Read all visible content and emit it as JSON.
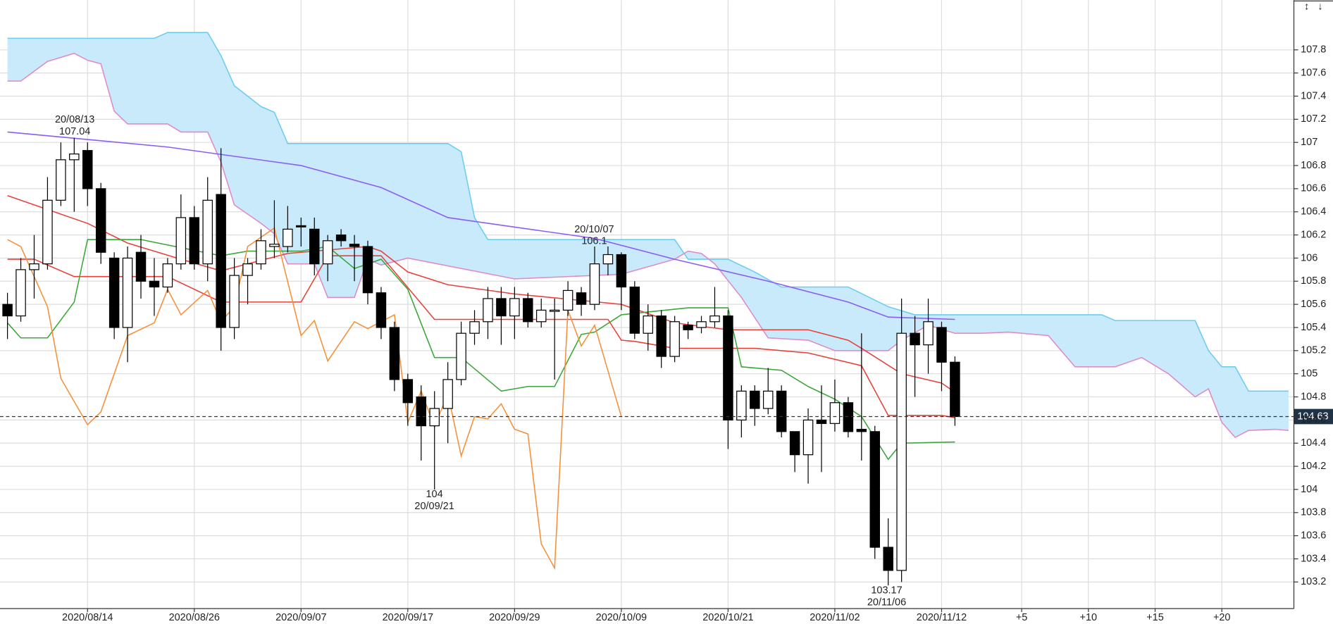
{
  "chart_data": {
    "type": "candlestick",
    "toolbar_icons": [
      "↕",
      "↓"
    ],
    "xlim": [
      -0.56,
      96.4
    ],
    "xticks": [
      {
        "value": 6,
        "label": "2020/08/14"
      },
      {
        "value": 14,
        "label": "2020/08/26"
      },
      {
        "value": 22,
        "label": "2020/09/07"
      },
      {
        "value": 30,
        "label": "2020/09/17"
      },
      {
        "value": 38,
        "label": "2020/09/29"
      },
      {
        "value": 46,
        "label": "2020/10/09"
      },
      {
        "value": 54,
        "label": "2020/10/21"
      },
      {
        "value": 62,
        "label": "2020/11/02"
      },
      {
        "value": 70,
        "label": "2020/11/12"
      },
      {
        "value": 76,
        "label": "+5"
      },
      {
        "value": 81,
        "label": "+10"
      },
      {
        "value": 86,
        "label": "+15"
      },
      {
        "value": 91,
        "label": "+20"
      }
    ],
    "ylim": [
      102.97,
      108.23
    ],
    "yticks": [
      103.2,
      103.4,
      103.6,
      103.8,
      104,
      104.2,
      104.4,
      104.6,
      104.8,
      105,
      105.2,
      105.4,
      105.6,
      105.8,
      106,
      106.2,
      106.4,
      106.6,
      106.8,
      107,
      107.2,
      107.4,
      107.6,
      107.8
    ],
    "grid": true,
    "last_price": 104.63,
    "candles": {
      "up_color": "#ffffff",
      "down_color": "#000000",
      "x": [
        0,
        1,
        2,
        3,
        4,
        5,
        6,
        7,
        8,
        9,
        10,
        11,
        12,
        13,
        14,
        15,
        16,
        17,
        18,
        19,
        20,
        21,
        22,
        23,
        24,
        25,
        26,
        27,
        28,
        29,
        30,
        31,
        32,
        33,
        34,
        35,
        36,
        37,
        38,
        39,
        40,
        41,
        42,
        43,
        44,
        45,
        46,
        47,
        48,
        49,
        50,
        51,
        52,
        53,
        54,
        55,
        56,
        57,
        58,
        59,
        60,
        61,
        62,
        63,
        64,
        65,
        66,
        67,
        68,
        69,
        70,
        71
      ],
      "open": [
        105.6,
        105.5,
        105.9,
        105.95,
        106.5,
        106.85,
        106.93,
        106.6,
        106.0,
        105.4,
        106.05,
        105.8,
        105.75,
        105.95,
        106.35,
        105.95,
        106.55,
        105.4,
        105.85,
        105.95,
        106.1,
        106.1,
        106.28,
        106.25,
        105.95,
        106.2,
        106.12,
        106.1,
        105.7,
        105.4,
        104.95,
        104.8,
        104.55,
        104.7,
        104.95,
        105.35,
        105.45,
        105.65,
        105.5,
        105.65,
        105.45,
        105.55,
        105.55,
        105.7,
        105.6,
        105.95,
        106.03,
        105.75,
        105.35,
        105.5,
        105.15,
        105.42,
        105.4,
        105.45,
        105.5,
        104.6,
        104.85,
        104.7,
        104.85,
        104.5,
        104.3,
        104.6,
        104.57,
        104.75,
        104.52,
        104.5,
        103.5,
        103.3,
        105.35,
        105.25,
        105.4,
        105.1
      ],
      "high": [
        105.7,
        106.0,
        106.2,
        106.7,
        107.0,
        107.04,
        107.0,
        106.65,
        106.05,
        106.1,
        106.2,
        106.0,
        106.0,
        106.55,
        106.45,
        106.7,
        106.95,
        106.0,
        106.0,
        106.25,
        106.5,
        106.45,
        106.35,
        106.35,
        106.2,
        106.25,
        106.2,
        106.15,
        105.75,
        105.45,
        105.0,
        104.9,
        104.85,
        105.1,
        105.45,
        105.55,
        105.75,
        105.75,
        105.75,
        105.7,
        105.65,
        105.65,
        105.8,
        105.75,
        106.1,
        106.1,
        106.05,
        105.8,
        105.6,
        105.55,
        105.5,
        105.45,
        105.5,
        105.75,
        105.55,
        104.9,
        104.9,
        105.05,
        104.9,
        104.5,
        104.7,
        104.9,
        104.95,
        104.8,
        105.35,
        104.55,
        103.75,
        105.65,
        105.5,
        105.65,
        105.45,
        105.15
      ],
      "low": [
        105.3,
        105.45,
        105.65,
        105.9,
        106.45,
        106.4,
        106.45,
        105.95,
        105.3,
        105.1,
        105.65,
        105.5,
        105.7,
        105.9,
        105.9,
        105.8,
        105.2,
        105.3,
        105.6,
        105.9,
        106.0,
        106.05,
        106.1,
        105.85,
        105.8,
        106.1,
        105.8,
        105.6,
        105.3,
        104.85,
        104.55,
        104.25,
        104.0,
        104.4,
        104.9,
        105.25,
        105.3,
        105.25,
        105.3,
        105.4,
        105.4,
        104.95,
        105.5,
        105.5,
        105.55,
        105.85,
        105.55,
        105.3,
        105.2,
        105.05,
        105.1,
        105.3,
        105.35,
        105.4,
        104.35,
        104.45,
        104.55,
        104.65,
        104.45,
        104.15,
        104.05,
        104.15,
        104.5,
        104.45,
        104.25,
        103.4,
        103.17,
        103.2,
        104.8,
        105.0,
        104.85,
        104.55
      ],
      "close": [
        105.5,
        105.9,
        105.95,
        106.5,
        106.85,
        106.9,
        106.6,
        106.05,
        105.4,
        106.0,
        105.8,
        105.75,
        105.95,
        106.35,
        105.95,
        106.5,
        105.4,
        105.85,
        105.95,
        106.15,
        106.12,
        106.25,
        106.27,
        105.95,
        106.15,
        106.15,
        106.1,
        105.7,
        105.4,
        104.95,
        104.75,
        104.55,
        104.7,
        104.95,
        105.35,
        105.45,
        105.65,
        105.5,
        105.65,
        105.45,
        105.55,
        105.55,
        105.72,
        105.6,
        105.95,
        106.03,
        105.75,
        105.35,
        105.5,
        105.15,
        105.45,
        105.38,
        105.45,
        105.5,
        104.6,
        104.85,
        104.7,
        104.85,
        104.5,
        104.3,
        104.6,
        104.57,
        104.75,
        104.5,
        104.5,
        103.5,
        103.3,
        105.35,
        105.25,
        105.45,
        105.1,
        104.63
      ]
    },
    "series": [
      {
        "color": "#6ccdf0",
        "x": [
          0,
          11,
          12,
          15,
          16,
          17,
          19,
          20,
          21,
          33,
          34,
          35,
          36,
          50,
          51,
          54,
          56,
          58,
          63,
          66,
          68,
          82,
          83,
          89,
          90,
          91,
          92,
          93,
          96
        ],
        "values": [
          107.9,
          107.9,
          107.95,
          107.95,
          107.75,
          107.49,
          107.31,
          107.26,
          106.99,
          106.99,
          106.92,
          106.35,
          106.16,
          106.16,
          105.99,
          105.99,
          105.88,
          105.75,
          105.75,
          105.58,
          105.51,
          105.51,
          105.46,
          105.46,
          105.2,
          105.06,
          105.06,
          104.85,
          104.85
        ]
      },
      {
        "color": "#e08ac8",
        "x": [
          0,
          1,
          3,
          5,
          6,
          7,
          8,
          9,
          12,
          13,
          15,
          16,
          17,
          19,
          20,
          21,
          23,
          24,
          26,
          27,
          28,
          30,
          38,
          46,
          50,
          51,
          52,
          53,
          55,
          57,
          60,
          62,
          66,
          67,
          69,
          71,
          73,
          75,
          78,
          80,
          83,
          85,
          87,
          89,
          90,
          91,
          92,
          93,
          95,
          96
        ],
        "values": [
          107.53,
          107.53,
          107.7,
          107.77,
          107.71,
          107.68,
          107.27,
          107.16,
          107.16,
          107.09,
          107.09,
          106.83,
          106.46,
          106.3,
          106.21,
          105.95,
          105.95,
          105.66,
          105.66,
          105.99,
          105.94,
          106.0,
          105.82,
          105.86,
          105.99,
          106.06,
          106.04,
          105.95,
          105.66,
          105.31,
          105.29,
          105.2,
          105.2,
          105.29,
          105.42,
          105.35,
          105.35,
          105.36,
          105.33,
          105.06,
          105.06,
          105.14,
          105.0,
          104.8,
          104.87,
          104.58,
          104.45,
          104.51,
          104.52,
          104.51
        ]
      },
      {
        "color": "#8b5cf6",
        "x": [
          0,
          12,
          22,
          28,
          33,
          44,
          50,
          57,
          63,
          66,
          71
        ],
        "values": [
          107.09,
          106.96,
          106.8,
          106.61,
          106.35,
          106.17,
          105.99,
          105.8,
          105.62,
          105.49,
          105.47
        ]
      },
      {
        "color": "#e8413a",
        "x": [
          0,
          6,
          9,
          13,
          16,
          18,
          21,
          27,
          28,
          30,
          33,
          38,
          46,
          50,
          54,
          60,
          63,
          64,
          67,
          70,
          71
        ],
        "values": [
          106.54,
          106.3,
          106.13,
          105.99,
          105.89,
          105.95,
          106.04,
          106.1,
          106.06,
          105.88,
          105.77,
          105.69,
          105.6,
          105.44,
          105.38,
          105.38,
          105.29,
          105.22,
          105.0,
          104.92,
          104.84
        ]
      },
      {
        "color": "#e8413a",
        "x": [
          0,
          2,
          5,
          12,
          16,
          22,
          24,
          28,
          32,
          45,
          46,
          47,
          50,
          56,
          60,
          64,
          66,
          70,
          71
        ],
        "values": [
          105.99,
          105.99,
          105.84,
          105.84,
          105.62,
          105.62,
          106.02,
          106.02,
          105.47,
          105.47,
          105.29,
          105.28,
          105.22,
          105.22,
          105.18,
          105.07,
          104.64,
          104.64,
          104.62
        ]
      },
      {
        "color": "#3aa83a",
        "x": [
          0,
          1,
          3,
          5,
          6,
          10,
          16,
          18,
          22,
          24,
          26,
          28,
          30,
          32,
          34,
          37,
          39,
          41,
          43,
          44,
          46,
          51,
          54,
          55,
          58,
          60,
          62,
          64,
          66,
          67,
          71
        ],
        "values": [
          105.44,
          105.31,
          105.31,
          105.62,
          106.16,
          106.16,
          106.02,
          106.06,
          106.06,
          106.1,
          105.91,
          105.99,
          105.73,
          105.14,
          105.14,
          104.85,
          104.89,
          104.89,
          105.34,
          105.36,
          105.51,
          105.57,
          105.57,
          105.06,
          105.03,
          104.89,
          104.78,
          104.63,
          104.26,
          104.4,
          104.41
        ]
      },
      {
        "color": "#f5913a",
        "x": [
          0,
          1,
          3,
          4,
          6,
          7,
          9,
          11,
          12,
          13,
          15,
          16,
          17,
          18,
          20,
          22,
          23,
          24,
          26,
          27,
          29,
          30,
          31,
          32,
          33,
          34,
          35,
          36,
          37,
          38,
          39,
          40,
          41,
          42,
          43,
          44,
          46
        ],
        "values": [
          106.16,
          106.1,
          105.58,
          104.96,
          104.56,
          104.67,
          105.33,
          105.44,
          105.73,
          105.51,
          105.72,
          105.45,
          105.58,
          106.1,
          106.26,
          105.33,
          105.46,
          105.11,
          105.45,
          105.39,
          105.51,
          104.58,
          104.85,
          104.54,
          104.83,
          104.29,
          104.63,
          104.61,
          104.74,
          104.52,
          104.48,
          103.53,
          103.32,
          105.55,
          105.24,
          105.42,
          104.63
        ]
      }
    ],
    "annotations": [
      {
        "lines": [
          "20/08/13",
          "107.04"
        ]
      },
      {
        "lines": [
          "20/10/07",
          "106.1"
        ]
      },
      {
        "lines": [
          "104",
          "20/09/21"
        ]
      },
      {
        "lines": [
          "103.17",
          "20/11/06"
        ]
      }
    ]
  }
}
